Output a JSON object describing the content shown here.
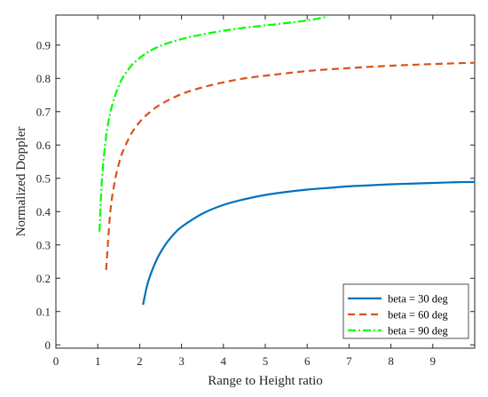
{
  "chart_data": {
    "type": "line",
    "xlabel": "Range to Height ratio",
    "ylabel": "Normalized Doppler",
    "xlim": [
      0,
      10
    ],
    "ylim": [
      -0.01,
      0.99
    ],
    "xticks": [
      "0",
      "1",
      "2",
      "3",
      "4",
      "5",
      "6",
      "7",
      "8",
      "9"
    ],
    "yticks": [
      "0",
      "0.1",
      "0.2",
      "0.3",
      "0.4",
      "0.5",
      "0.6",
      "0.7",
      "0.8",
      "0.9"
    ],
    "grid": false,
    "legend_position": "bottom-right",
    "series": [
      {
        "name": "beta = 30 deg",
        "color": "#0072BD",
        "style": "solid",
        "x": [
          2.08,
          2.2,
          2.4,
          2.6,
          2.8,
          3.0,
          3.5,
          4.0,
          4.5,
          5.0,
          5.5,
          6.0,
          6.5,
          7.0,
          7.5,
          8.0,
          8.5,
          9.0,
          9.5,
          10.0
        ],
        "y": [
          0.12,
          0.188,
          0.254,
          0.298,
          0.33,
          0.354,
          0.394,
          0.42,
          0.437,
          0.45,
          0.459,
          0.466,
          0.471,
          0.476,
          0.479,
          0.482,
          0.484,
          0.486,
          0.488,
          0.489
        ]
      },
      {
        "name": "beta = 60 deg",
        "color": "#D95319",
        "style": "dashed",
        "x": [
          1.2,
          1.3,
          1.4,
          1.5,
          1.6,
          1.8,
          2.0,
          2.2,
          2.5,
          3.0,
          3.5,
          4.0,
          4.5,
          5.0,
          6.0,
          7.0,
          8.0,
          9.0,
          10.0
        ],
        "y": [
          0.225,
          0.4,
          0.486,
          0.542,
          0.581,
          0.634,
          0.669,
          0.694,
          0.722,
          0.753,
          0.773,
          0.788,
          0.8,
          0.808,
          0.822,
          0.831,
          0.838,
          0.843,
          0.847
        ]
      },
      {
        "name": "beta = 90 deg",
        "color": "#00FF00",
        "style": "dashdot",
        "x": [
          1.04,
          1.1,
          1.2,
          1.3,
          1.4,
          1.5,
          1.6,
          1.8,
          2.0,
          2.2,
          2.5,
          3.0,
          3.5,
          4.0,
          4.5,
          5.0,
          5.5,
          6.0,
          6.5
        ],
        "y": [
          0.34,
          0.496,
          0.627,
          0.697,
          0.743,
          0.777,
          0.803,
          0.838,
          0.861,
          0.879,
          0.898,
          0.918,
          0.932,
          0.943,
          0.952,
          0.959,
          0.966,
          0.974,
          0.985
        ]
      }
    ]
  }
}
